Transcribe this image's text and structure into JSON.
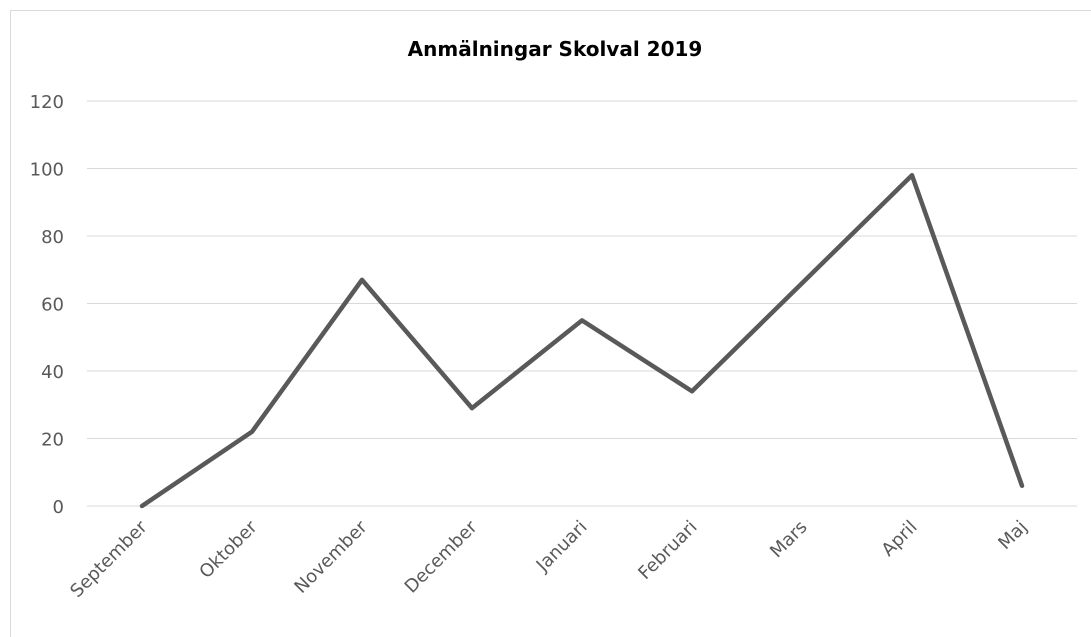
{
  "chart_data": {
    "type": "line",
    "title": "Anmälningar Skolval 2019",
    "categories": [
      "September",
      "Oktober",
      "November",
      "December",
      "Januari",
      "Februari",
      "Mars",
      "April",
      "Maj"
    ],
    "values": [
      0,
      22,
      67,
      29,
      55,
      34,
      66,
      98,
      6
    ],
    "color": "#595959",
    "ylim": [
      0,
      120
    ],
    "yticks": [
      0,
      20,
      40,
      60,
      80,
      100,
      120
    ],
    "grid": true
  }
}
